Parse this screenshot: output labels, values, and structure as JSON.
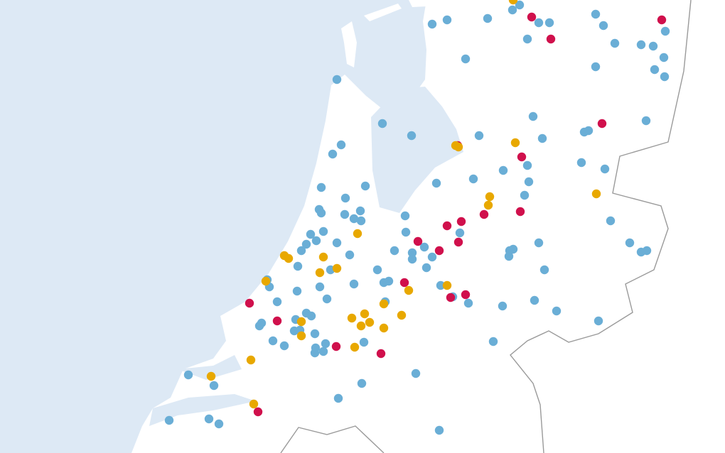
{
  "map": {
    "colors": {
      "sea": "#dde9f5",
      "land": "#ffffff",
      "inland_water": "#dde9f5",
      "border": "#9a9a9a"
    },
    "categories": [
      {
        "key": "blue",
        "color": "#6aaed6"
      },
      {
        "key": "red",
        "color": "#d0104c"
      },
      {
        "key": "yellow",
        "color": "#e8a800"
      }
    ]
  }
}
